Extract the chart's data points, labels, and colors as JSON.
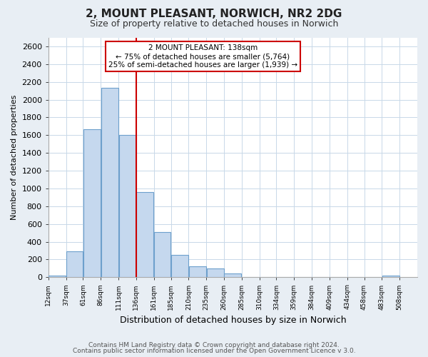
{
  "title": "2, MOUNT PLEASANT, NORWICH, NR2 2DG",
  "subtitle": "Size of property relative to detached houses in Norwich",
  "xlabel": "Distribution of detached houses by size in Norwich",
  "ylabel": "Number of detached properties",
  "bar_left_edges": [
    12,
    37,
    61,
    86,
    111,
    136,
    161,
    185,
    210,
    235,
    260,
    285,
    310,
    334,
    359,
    384,
    409,
    434,
    458,
    483
  ],
  "bar_widths": [
    25,
    24,
    25,
    25,
    25,
    25,
    24,
    25,
    25,
    25,
    25,
    25,
    24,
    25,
    25,
    25,
    25,
    24,
    25,
    25
  ],
  "bar_heights": [
    20,
    295,
    1665,
    2130,
    1600,
    960,
    505,
    255,
    120,
    95,
    40,
    5,
    5,
    0,
    0,
    0,
    0,
    0,
    0,
    15
  ],
  "bar_color": "#c5d8ee",
  "bar_edge_color": "#6da0cc",
  "tick_labels": [
    "12sqm",
    "37sqm",
    "61sqm",
    "86sqm",
    "111sqm",
    "136sqm",
    "161sqm",
    "185sqm",
    "210sqm",
    "235sqm",
    "260sqm",
    "285sqm",
    "310sqm",
    "334sqm",
    "359sqm",
    "384sqm",
    "409sqm",
    "434sqm",
    "458sqm",
    "483sqm",
    "508sqm"
  ],
  "ylim": [
    0,
    2700
  ],
  "yticks": [
    0,
    200,
    400,
    600,
    800,
    1000,
    1200,
    1400,
    1600,
    1800,
    2000,
    2200,
    2400,
    2600
  ],
  "xlim_left": 12,
  "xlim_right": 533,
  "vline_x": 136,
  "vline_color": "#cc0000",
  "annotation_title": "2 MOUNT PLEASANT: 138sqm",
  "annotation_line1": "← 75% of detached houses are smaller (5,764)",
  "annotation_line2": "25% of semi-detached houses are larger (1,939) →",
  "annotation_box_color": "#ffffff",
  "annotation_box_edge": "#cc0000",
  "footer1": "Contains HM Land Registry data © Crown copyright and database right 2024.",
  "footer2": "Contains public sector information licensed under the Open Government Licence v 3.0.",
  "background_color": "#e8eef4",
  "plot_background": "#ffffff",
  "grid_color": "#c8d8e8"
}
